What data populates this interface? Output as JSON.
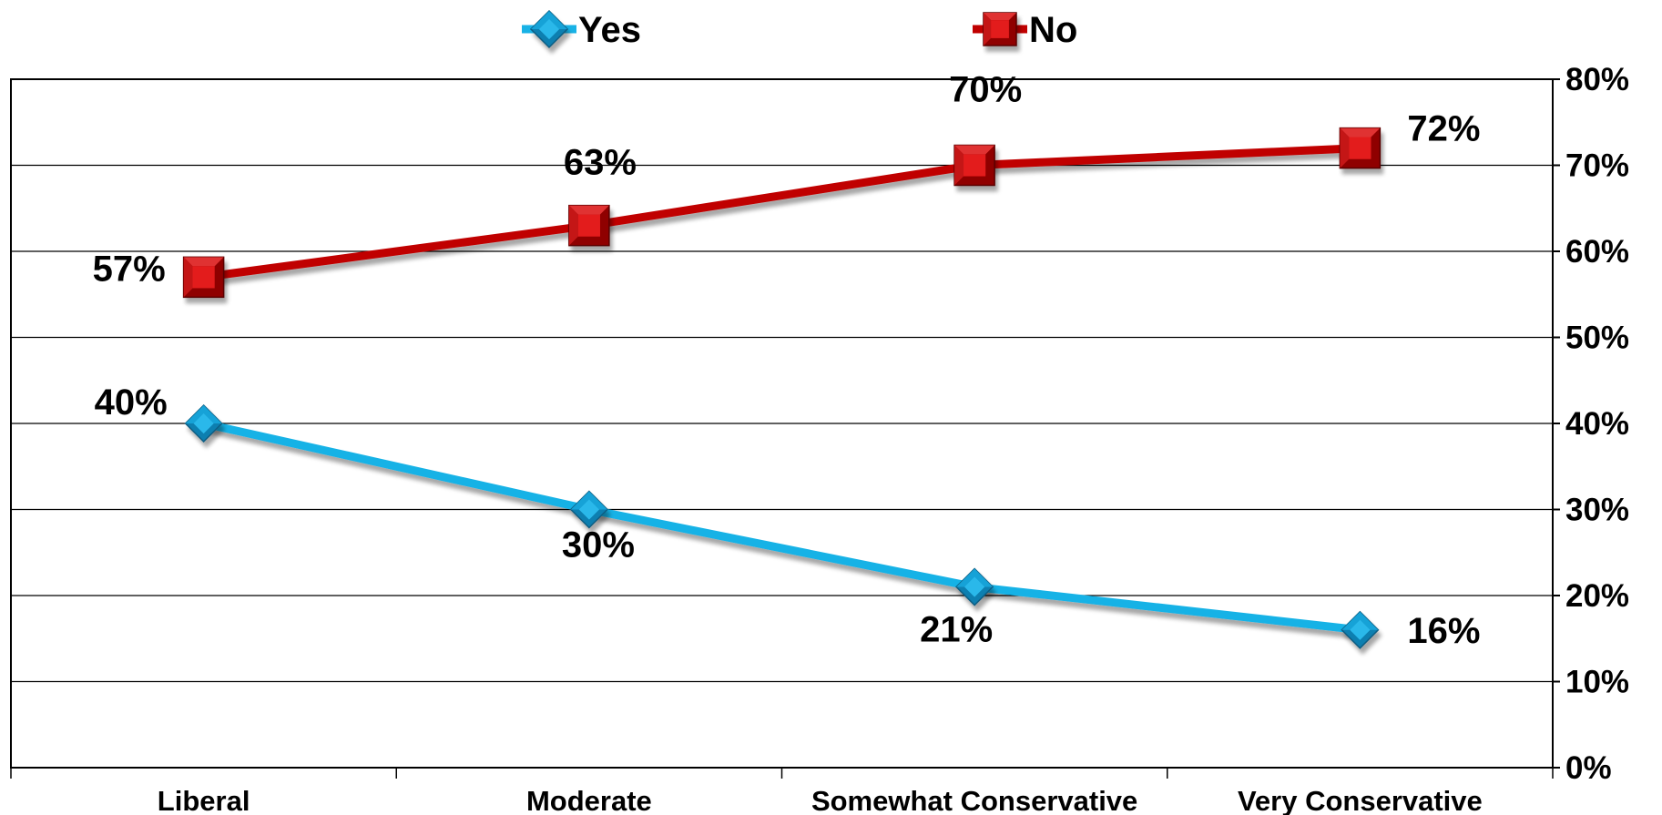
{
  "chart_data": {
    "type": "line",
    "title": "",
    "xlabel": "",
    "ylabel": "",
    "categories": [
      "Liberal",
      "Moderate",
      "Somewhat Conservative",
      "Very Conservative"
    ],
    "series": [
      {
        "name": "Yes",
        "values": [
          40,
          30,
          21,
          16
        ],
        "labels": [
          "40%",
          "30%",
          "21%",
          "16%"
        ],
        "color": "#18b2e6",
        "marker": "diamond"
      },
      {
        "name": "No",
        "values": [
          57,
          63,
          70,
          72
        ],
        "labels": [
          "57%",
          "63%",
          "70%",
          "72%"
        ],
        "color": "#c00000",
        "marker": "square"
      }
    ],
    "ylim": [
      0,
      80
    ],
    "yticks": [
      0,
      10,
      20,
      30,
      40,
      50,
      60,
      70,
      80
    ],
    "ytick_labels": [
      "0%",
      "10%",
      "20%",
      "30%",
      "40%",
      "50%",
      "60%",
      "70%",
      "80%"
    ],
    "y_axis_side": "right",
    "grid": true,
    "legend_position": "top"
  }
}
